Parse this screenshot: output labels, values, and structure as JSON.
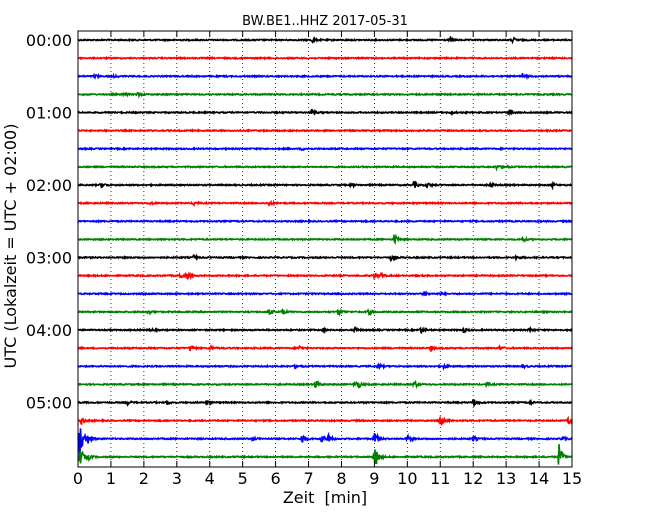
{
  "chart_data": {
    "type": "line",
    "title": "BW.BE1..HHZ 2017-05-31",
    "xlabel": "Zeit  [min]",
    "ylabel": "UTC (Lokalzeit = UTC + 02:00)",
    "xlim": [
      0,
      15
    ],
    "x_ticks": [
      0,
      1,
      2,
      3,
      4,
      5,
      6,
      7,
      8,
      9,
      10,
      11,
      12,
      13,
      14,
      15
    ],
    "y_tick_labels": [
      "00:00",
      "01:00",
      "02:00",
      "03:00",
      "04:00",
      "05:00"
    ],
    "trace_interval_min": 15,
    "trace_count": 24,
    "grid": {
      "x": true,
      "y": false,
      "style": "dotted"
    },
    "series": [
      {
        "color": "#000000",
        "events": [
          [
            7.1,
            2.5
          ],
          [
            11.3,
            1.5
          ],
          [
            13.2,
            2.5
          ]
        ]
      },
      {
        "color": "#ff0000",
        "events": []
      },
      {
        "color": "#0000ff",
        "events": [
          [
            0.5,
            2
          ],
          [
            1.1,
            1
          ],
          [
            13.5,
            3
          ]
        ]
      },
      {
        "color": "#008000",
        "events": [
          [
            1.4,
            2
          ],
          [
            1.8,
            2
          ]
        ]
      },
      {
        "color": "#000000",
        "events": [
          [
            7.1,
            3
          ],
          [
            11.3,
            2
          ],
          [
            13.1,
            3
          ]
        ]
      },
      {
        "color": "#ff0000",
        "events": []
      },
      {
        "color": "#0000ff",
        "events": [
          [
            6.8,
            1.5
          ]
        ]
      },
      {
        "color": "#008000",
        "events": [
          [
            12.7,
            2
          ],
          [
            12.9,
            2
          ]
        ]
      },
      {
        "color": "#000000",
        "events": [
          [
            0.7,
            3
          ],
          [
            8.3,
            1.5
          ],
          [
            10.2,
            4
          ],
          [
            10.6,
            2.5
          ],
          [
            12.5,
            2.5
          ],
          [
            14.4,
            2.5
          ]
        ]
      },
      {
        "color": "#ff0000",
        "events": [
          [
            2.2,
            1.5
          ],
          [
            3.5,
            2.5
          ],
          [
            5.8,
            3
          ]
        ]
      },
      {
        "color": "#0000ff",
        "events": []
      },
      {
        "color": "#008000",
        "events": [
          [
            9.6,
            6
          ],
          [
            13.5,
            2
          ]
        ]
      },
      {
        "color": "#000000",
        "events": [
          [
            3.5,
            2
          ],
          [
            9.5,
            2.5
          ],
          [
            13.3,
            2
          ]
        ]
      },
      {
        "color": "#ff0000",
        "events": [
          [
            3.1,
            3.5
          ],
          [
            3.3,
            3
          ],
          [
            9.0,
            3
          ],
          [
            9.2,
            2
          ]
        ]
      },
      {
        "color": "#0000ff",
        "events": [
          [
            10.5,
            2.5
          ],
          [
            11.0,
            1.5
          ]
        ]
      },
      {
        "color": "#008000",
        "events": [
          [
            2.1,
            3
          ],
          [
            5.8,
            3.5
          ],
          [
            6.2,
            2.5
          ],
          [
            7.9,
            3.5
          ],
          [
            8.8,
            3.5
          ]
        ]
      },
      {
        "color": "#000000",
        "events": [
          [
            2.2,
            1.5
          ],
          [
            7.4,
            2
          ],
          [
            8.4,
            2.5
          ],
          [
            10.4,
            3.5
          ],
          [
            11.7,
            2.5
          ],
          [
            13.7,
            2
          ]
        ]
      },
      {
        "color": "#ff0000",
        "events": [
          [
            3.4,
            3
          ],
          [
            4.0,
            2.5
          ],
          [
            6.7,
            3
          ],
          [
            10.7,
            3
          ],
          [
            12.8,
            2.5
          ]
        ]
      },
      {
        "color": "#0000ff",
        "events": [
          [
            6.6,
            2.5
          ],
          [
            9.1,
            3
          ],
          [
            11.1,
            2
          ],
          [
            13.5,
            2
          ]
        ]
      },
      {
        "color": "#008000",
        "events": [
          [
            7.2,
            5
          ],
          [
            8.4,
            3.5
          ],
          [
            8.5,
            3
          ],
          [
            10.2,
            4
          ],
          [
            12.4,
            2
          ]
        ]
      },
      {
        "color": "#000000",
        "events": [
          [
            1.5,
            2
          ],
          [
            2.7,
            2
          ],
          [
            3.9,
            3
          ],
          [
            12.0,
            5
          ],
          [
            13.7,
            2
          ]
        ]
      },
      {
        "color": "#ff0000",
        "events": [
          [
            0.1,
            4
          ],
          [
            11.0,
            10
          ],
          [
            14.9,
            6
          ]
        ]
      },
      {
        "color": "#0000ff",
        "events": [
          [
            0.05,
            22
          ],
          [
            0.3,
            5
          ],
          [
            5.3,
            2
          ],
          [
            6.8,
            6
          ],
          [
            7.4,
            4
          ],
          [
            7.6,
            6
          ],
          [
            9.0,
            10
          ],
          [
            10.0,
            3
          ],
          [
            12.0,
            3
          ],
          [
            14.7,
            3
          ]
        ]
      },
      {
        "color": "#008000",
        "events": [
          [
            0.05,
            12
          ],
          [
            0.3,
            3
          ],
          [
            9.0,
            15
          ],
          [
            14.6,
            14
          ]
        ]
      }
    ]
  }
}
